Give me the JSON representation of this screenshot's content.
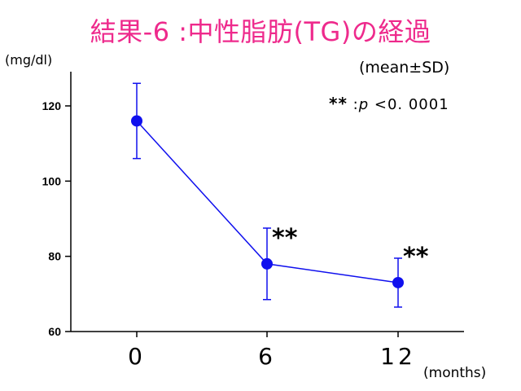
{
  "title": "結果-6 :中性脂肪(TG)の経過",
  "y_unit": "(mg/dl)",
  "stat_note": "(mean±SD)",
  "significance_note": {
    "symbol": "**",
    "sep": " :",
    "p": "p",
    "text": " <0. 0001"
  },
  "x_unit": "(months)",
  "colors": {
    "title": "#ee2a8c",
    "series": "#1010ee",
    "axis": "#000000"
  },
  "chart_data": {
    "type": "line",
    "x": [
      0,
      6,
      12
    ],
    "x_tick_labels": [
      "0",
      "6",
      "12"
    ],
    "y_ticks": [
      60,
      80,
      100,
      120
    ],
    "ylim": [
      60,
      130
    ],
    "xlabel": "(months)",
    "ylabel": "(mg/dl)",
    "series": [
      {
        "values": [
          116,
          78,
          73
        ],
        "sd": [
          10,
          9.5,
          6.5
        ],
        "markers": [
          "",
          "**",
          "**"
        ]
      }
    ],
    "grid": false
  }
}
